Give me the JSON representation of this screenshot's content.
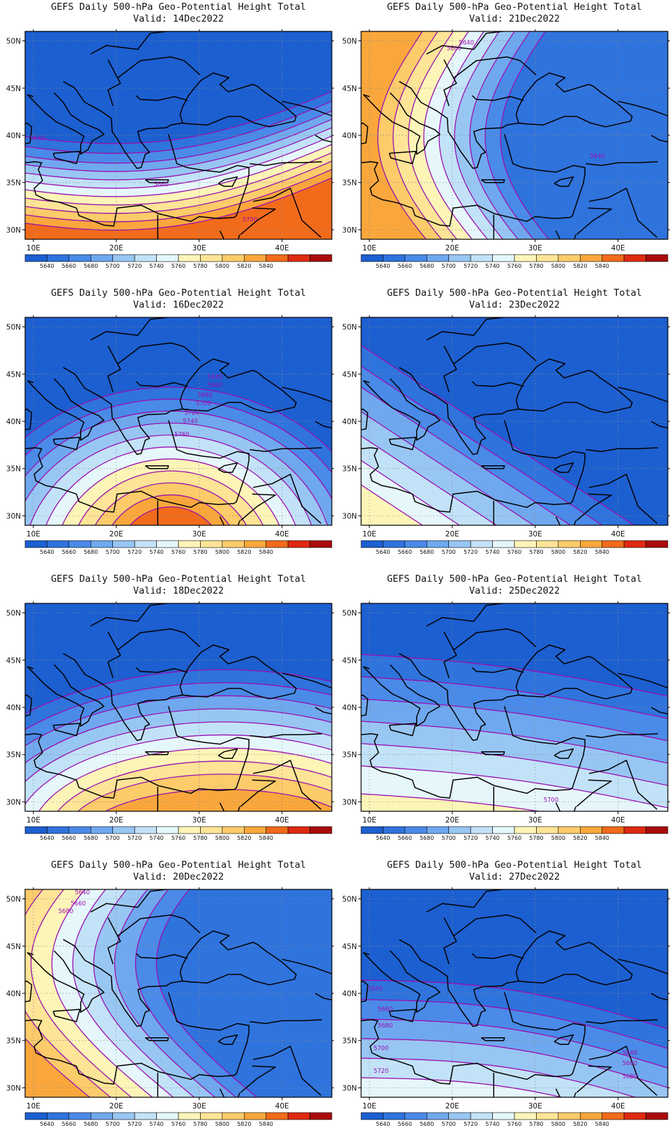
{
  "figure": {
    "colorbar": {
      "levels": [
        5640,
        5660,
        5680,
        5700,
        5720,
        5740,
        5760,
        5780,
        5800,
        5820,
        5840
      ],
      "colors": [
        "#1c5fd0",
        "#2f73dd",
        "#4a8ae8",
        "#6fa8ee",
        "#98c6f3",
        "#c2e2f8",
        "#e6f7fb",
        "#fdf5b8",
        "#fde497",
        "#fccb6a",
        "#f9a73c",
        "#f26b1b",
        "#df2a10",
        "#a90b0b"
      ]
    },
    "axes": {
      "lon_ticks": [
        "10E",
        "20E",
        "30E",
        "40E"
      ],
      "lat_ticks": [
        "50N",
        "45N",
        "40N",
        "35N",
        "30N"
      ],
      "lon_values": [
        10,
        20,
        30,
        40
      ],
      "lat_values": [
        50,
        45,
        40,
        35,
        30
      ],
      "lon_range": [
        9,
        46
      ],
      "lat_range": [
        29,
        51
      ],
      "grid": "dotted"
    },
    "contour_color": "#9a0fb0",
    "land_outline_color": "#000000",
    "panels": [
      {
        "title": "GEFS Daily 500-hPa Geo-Potential Height Total",
        "valid": "Valid: 14Dec2022",
        "labels": [
          "5640",
          "5660",
          "5700"
        ]
      },
      {
        "title": "GEFS Daily 500-hPa Geo-Potential Height Total",
        "valid": "Valid: 21Dec2022",
        "labels": [
          "5640",
          "5660",
          "5640"
        ]
      },
      {
        "title": "GEFS Daily 500-hPa Geo-Potential Height Total",
        "valid": "Valid: 16Dec2022",
        "labels": [
          "5640",
          "5660",
          "5680",
          "5700",
          "5720",
          "5740",
          "5760"
        ]
      },
      {
        "title": "GEFS Daily 500-hPa Geo-Potential Height Total",
        "valid": "Valid: 23Dec2022",
        "labels": []
      },
      {
        "title": "GEFS Daily 500-hPa Geo-Potential Height Total",
        "valid": "Valid: 18Dec2022",
        "labels": []
      },
      {
        "title": "GEFS Daily 500-hPa Geo-Potential Height Total",
        "valid": "Valid: 25Dec2022",
        "labels": [
          "5700"
        ]
      },
      {
        "title": "GEFS Daily 500-hPa Geo-Potential Height Total",
        "valid": "Valid: 20Dec2022",
        "labels": [
          "5640",
          "5660",
          "5680"
        ]
      },
      {
        "title": "GEFS Daily 500-hPa Geo-Potential Height Total",
        "valid": "Valid: 27Dec2022",
        "labels": [
          "5640",
          "5660",
          "5680",
          "5700",
          "5720",
          "5640",
          "5660",
          "5680"
        ]
      }
    ]
  }
}
